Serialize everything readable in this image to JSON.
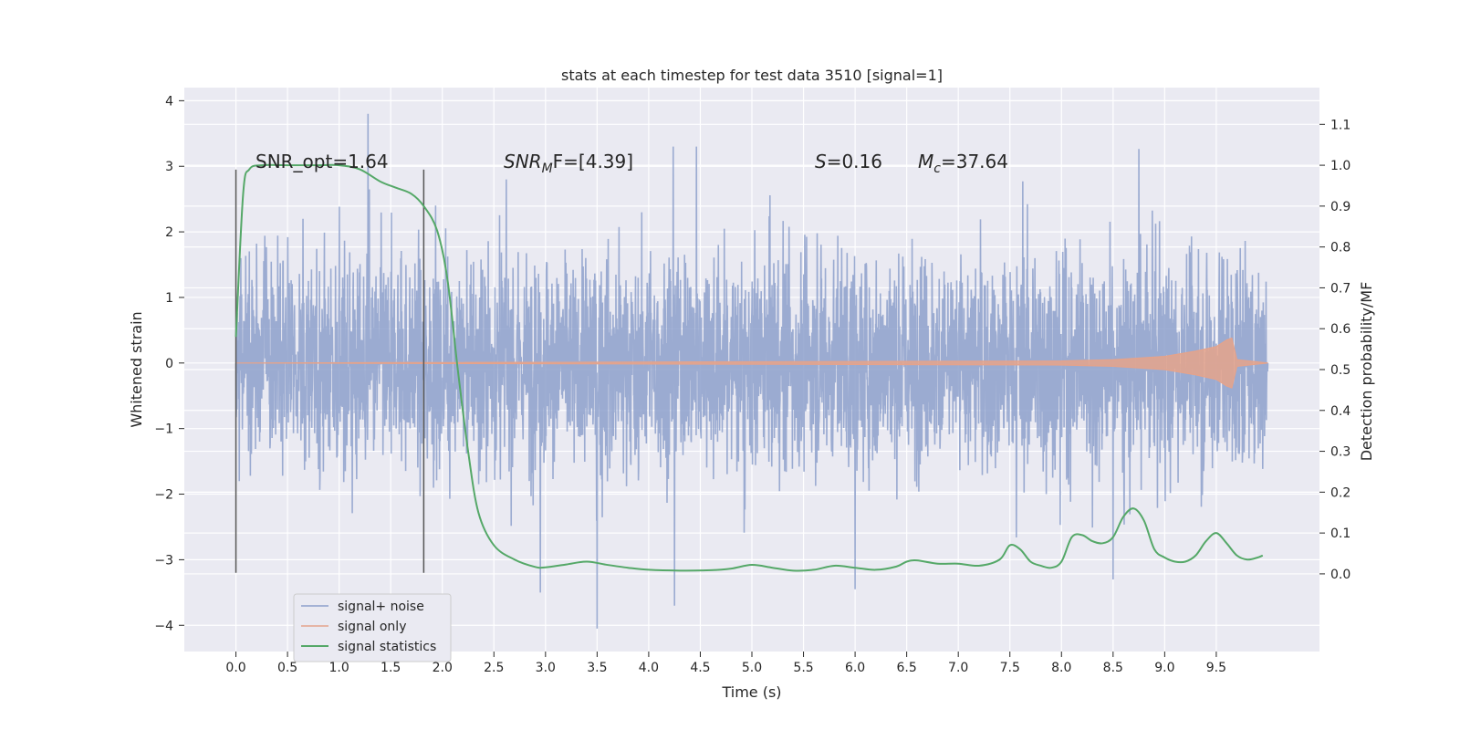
{
  "chart_data": {
    "type": "line",
    "title": "stats at each timestep for test data 3510 [signal=1]",
    "xlabel": "Time (s)",
    "ylabel_left": "Whitened strain",
    "ylabel_right": "Detection probability/MF",
    "xlim": [
      -0.5,
      10.5
    ],
    "ylim_left": [
      -4.4,
      4.2
    ],
    "ylim_right": [
      -0.19,
      1.19
    ],
    "x_ticks": [
      "0.0",
      "0.5",
      "1.0",
      "1.5",
      "2.0",
      "2.5",
      "3.0",
      "3.5",
      "4.0",
      "4.5",
      "5.0",
      "5.5",
      "6.0",
      "6.5",
      "7.0",
      "7.5",
      "8.0",
      "8.5",
      "9.0",
      "9.5"
    ],
    "y_ticks_left": [
      "4",
      "3",
      "2",
      "1",
      "0",
      "−1",
      "−2",
      "−3",
      "−4"
    ],
    "y_ticks_right": [
      "1.1",
      "1.0",
      "0.9",
      "0.8",
      "0.7",
      "0.6",
      "0.5",
      "0.4",
      "0.3",
      "0.2",
      "0.1",
      "0.0"
    ],
    "grid": true,
    "legend_position": "lower-left",
    "vlines_x": [
      0.0,
      1.82
    ],
    "annotations": {
      "snr_opt": "SNR_opt=1.64",
      "snr_mf_main": "SNR",
      "snr_mf_sub": "M",
      "snr_mf_rest": "F=[4.39]",
      "s_var": "S",
      "s_rest": "=0.16",
      "mc_var": "M",
      "mc_sub": "c",
      "mc_rest": "=37.64"
    },
    "series": [
      {
        "name": "signal+ noise",
        "color": "#8da0cb",
        "axis": "left",
        "note_x_range": [
          0.0,
          10.0
        ],
        "envelope_typical": 1.5,
        "x": [
          0.0,
          1.28,
          2.95,
          3.5,
          4.25,
          6.0,
          8.5
        ],
        "values": [
          0.0,
          3.8,
          -3.5,
          -4.05,
          -3.7,
          -3.45,
          -3.3
        ]
      },
      {
        "name": "signal only",
        "color": "#e5a38b",
        "axis": "left",
        "x": [
          0.0,
          8.0,
          8.5,
          9.0,
          9.3,
          9.5,
          9.6,
          9.65,
          9.7,
          10.0
        ],
        "values": [
          0.0,
          0.03,
          0.05,
          0.1,
          0.18,
          0.25,
          0.35,
          0.38,
          0.05,
          0.0
        ]
      },
      {
        "name": "signal statistics",
        "color": "#55a868",
        "axis": "right",
        "x": [
          0.0,
          0.07,
          0.13,
          0.25,
          0.5,
          0.8,
          1.0,
          1.2,
          1.4,
          1.55,
          1.7,
          1.82,
          1.95,
          2.05,
          2.15,
          2.25,
          2.35,
          2.5,
          2.7,
          2.9,
          3.0,
          3.2,
          3.4,
          3.6,
          3.8,
          4.0,
          4.3,
          4.6,
          4.8,
          5.0,
          5.2,
          5.4,
          5.6,
          5.8,
          6.0,
          6.2,
          6.4,
          6.5,
          6.6,
          6.8,
          7.0,
          7.2,
          7.4,
          7.5,
          7.6,
          7.7,
          7.8,
          7.9,
          8.0,
          8.1,
          8.2,
          8.3,
          8.4,
          8.5,
          8.6,
          8.7,
          8.8,
          8.9,
          9.0,
          9.1,
          9.2,
          9.3,
          9.4,
          9.5,
          9.6,
          9.7,
          9.8,
          9.9,
          9.95
        ],
        "values": [
          0.58,
          0.93,
          0.99,
          1.0,
          1.0,
          1.0,
          1.0,
          0.99,
          0.96,
          0.945,
          0.93,
          0.9,
          0.84,
          0.72,
          0.5,
          0.3,
          0.15,
          0.07,
          0.035,
          0.017,
          0.016,
          0.023,
          0.03,
          0.022,
          0.015,
          0.01,
          0.008,
          0.009,
          0.013,
          0.022,
          0.015,
          0.008,
          0.01,
          0.02,
          0.015,
          0.01,
          0.018,
          0.03,
          0.033,
          0.025,
          0.025,
          0.02,
          0.035,
          0.07,
          0.06,
          0.03,
          0.02,
          0.015,
          0.03,
          0.09,
          0.095,
          0.08,
          0.075,
          0.09,
          0.14,
          0.16,
          0.13,
          0.06,
          0.04,
          0.03,
          0.03,
          0.045,
          0.08,
          0.1,
          0.075,
          0.045,
          0.035,
          0.04,
          0.045
        ]
      }
    ]
  }
}
